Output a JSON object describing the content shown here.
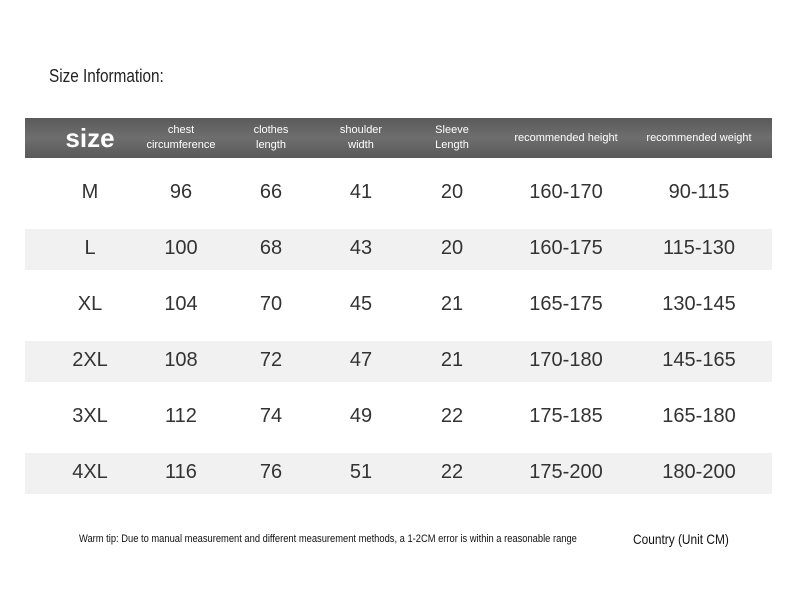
{
  "title": "Size Information:",
  "table": {
    "headers": [
      "size",
      "chest circumference",
      "clothes length",
      "shoulder width",
      "Sleeve Length",
      "recommended height",
      "recommended weight"
    ],
    "rows": [
      [
        "M",
        "96",
        "66",
        "41",
        "20",
        "160-170",
        "90-115"
      ],
      [
        "L",
        "100",
        "68",
        "43",
        "20",
        "160-175",
        "115-130"
      ],
      [
        "XL",
        "104",
        "70",
        "45",
        "21",
        "165-175",
        "130-145"
      ],
      [
        "2XL",
        "108",
        "72",
        "47",
        "21",
        "170-180",
        "145-165"
      ],
      [
        "3XL",
        "112",
        "74",
        "49",
        "22",
        "175-185",
        "165-180"
      ],
      [
        "4XL",
        "116",
        "76",
        "51",
        "22",
        "175-200",
        "180-200"
      ]
    ]
  },
  "footer": {
    "tip": "Warm tip: Due to manual measurement and different measurement methods, a 1-2CM error is within a reasonable range",
    "unit": "Country (Unit CM)"
  }
}
